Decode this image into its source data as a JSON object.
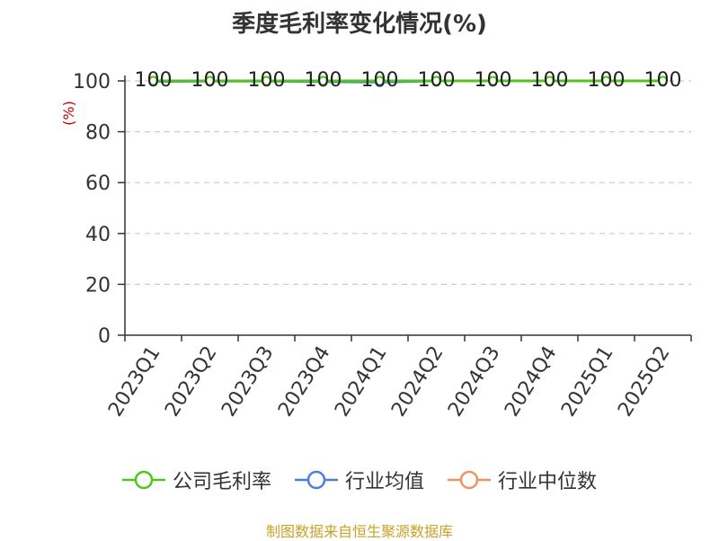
{
  "chart_data": {
    "type": "line",
    "title": "季度毛利率变化情况(%)",
    "ylabel": "(%)",
    "ylim": [
      0,
      100
    ],
    "yticks": [
      0,
      20,
      40,
      60,
      80,
      100
    ],
    "grid": true,
    "legend_position": "bottom",
    "categories": [
      "2023Q1",
      "2023Q2",
      "2023Q3",
      "2023Q4",
      "2024Q1",
      "2024Q2",
      "2024Q3",
      "2024Q4",
      "2025Q1",
      "2025Q2"
    ],
    "series": [
      {
        "name": "公司毛利率",
        "color": "#52c41a",
        "values": [
          100,
          100,
          100,
          100,
          100,
          100,
          100,
          100,
          100,
          100
        ]
      },
      {
        "name": "行业均值",
        "color": "#4a7ee0",
        "values": [
          99.8,
          99.9,
          99.9,
          99.7,
          99.5,
          100,
          null,
          null,
          null,
          null
        ]
      },
      {
        "name": "行业中位数",
        "color": "#f4925c",
        "values": [
          100,
          100,
          100,
          100,
          100,
          100,
          null,
          null,
          null,
          null
        ]
      }
    ],
    "data_labels": [
      "100",
      "100",
      "100",
      "100",
      "100",
      "100",
      "100",
      "100",
      "100",
      "100"
    ]
  },
  "source": "制图数据来自恒生聚源数据库"
}
